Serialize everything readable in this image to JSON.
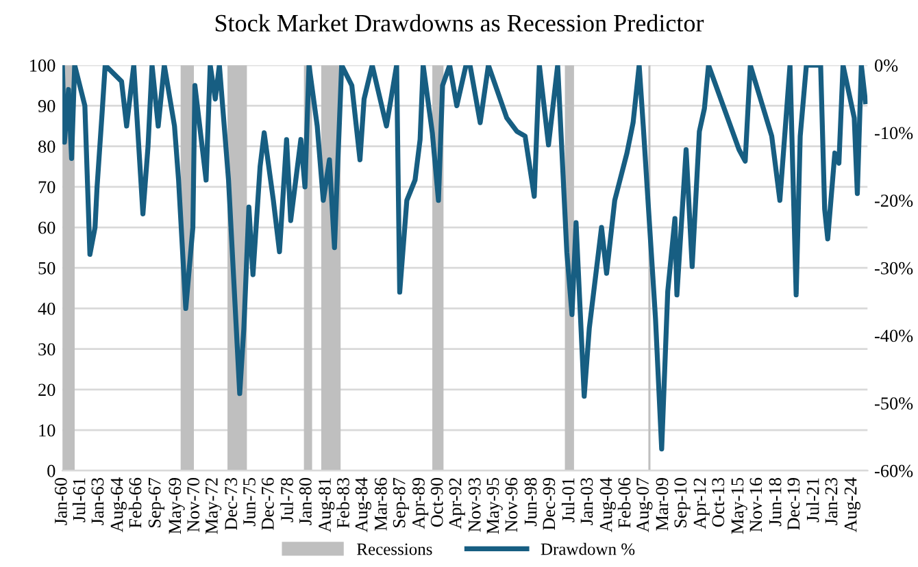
{
  "chart_data": {
    "type": "line",
    "title": "Stock Market Drawdowns as Recession Predictor",
    "x": [
      "1960-01",
      "1960-03",
      "1960-07",
      "1960-10",
      "1961-01",
      "1961-11",
      "1962-04",
      "1962-09",
      "1962-11",
      "1963-04",
      "1963-07",
      "1964-11",
      "1965-04",
      "1965-11",
      "1966-08",
      "1967-01",
      "1967-05",
      "1967-11",
      "1968-05",
      "1969-03",
      "1969-07",
      "1970-02",
      "1970-09",
      "1970-11",
      "1971-10",
      "1972-02",
      "1972-07",
      "1972-11",
      "1973-08",
      "1974-07",
      "1974-11",
      "1975-04",
      "1975-08",
      "1976-03",
      "1976-07",
      "1977-04",
      "1977-10",
      "1978-05",
      "1978-09",
      "1979-07",
      "1979-11",
      "1980-03",
      "1980-11",
      "1981-05",
      "1981-11",
      "1982-04",
      "1982-11",
      "1983-09",
      "1984-05",
      "1984-09",
      "1985-05",
      "1986-07",
      "1987-05",
      "1987-08",
      "1988-03",
      "1988-11",
      "1989-04",
      "1989-07",
      "1990-04",
      "1990-10",
      "1991-02",
      "1991-09",
      "1992-04",
      "1993-01",
      "1993-05",
      "1994-03",
      "1994-11",
      "1996-05",
      "1997-03",
      "1997-11",
      "1998-08",
      "1999-01",
      "1999-10",
      "2000-07",
      "2001-04",
      "2001-09",
      "2002-01",
      "2002-09",
      "2003-02",
      "2004-02",
      "2004-07",
      "2005-03",
      "2006-03",
      "2006-09",
      "2007-03",
      "2007-07",
      "2007-11",
      "2008-07",
      "2009-01",
      "2009-07",
      "2010-02",
      "2010-04",
      "2011-01",
      "2011-07",
      "2012-02",
      "2012-07",
      "2012-11",
      "2015-05",
      "2015-11",
      "2016-04",
      "2018-01",
      "2018-09",
      "2019-07",
      "2020-01",
      "2020-05",
      "2020-11",
      "2022-01",
      "2022-05",
      "2022-08",
      "2023-03",
      "2023-07",
      "2023-11",
      "2024-10",
      "2025-01",
      "2025-05",
      "2025-09"
    ],
    "series": [
      {
        "name": "Drawdown %",
        "color": "#175e82",
        "axis": "y2",
        "values": [
          0,
          -11.4,
          -3.6,
          -13.8,
          0,
          -6,
          -28,
          -24,
          -18,
          -7,
          0,
          -2.4,
          -9,
          0,
          -22,
          -12,
          0,
          -9,
          0,
          -9,
          -17,
          -36,
          -24,
          -3,
          -17,
          0,
          -5,
          0,
          -17,
          -48.6,
          -39,
          -21,
          -31,
          -15,
          -10,
          -20,
          -27.6,
          -11,
          -23,
          -11,
          -18,
          0,
          -9,
          -20,
          -14,
          -27,
          0,
          -3,
          -14,
          -5,
          0,
          -9,
          0,
          -33.6,
          -20,
          -17,
          -11,
          0,
          -10,
          -20,
          -3,
          0,
          -6,
          0,
          0,
          -8.5,
          0,
          -7.8,
          -9.8,
          -10.5,
          -19.4,
          0,
          -11.8,
          0,
          -27.7,
          -36.9,
          -23.3,
          -49,
          -38.9,
          -24,
          -30.8,
          -20,
          -13,
          -8.5,
          0,
          -9,
          -18.6,
          -37.5,
          -56.8,
          -33.5,
          -22.7,
          -34,
          -12.5,
          -29.8,
          -9.8,
          -6.4,
          0,
          -12.5,
          -14.2,
          0,
          -10.5,
          -20,
          0,
          -34,
          -10.5,
          0,
          0,
          -21.3,
          -25.7,
          -13,
          -14.5,
          0,
          -7.8,
          -19,
          0,
          -5.4
        ]
      }
    ],
    "bands": [
      {
        "axis": "x",
        "from": "1960-01",
        "to": "1961-01",
        "label": "Recessions",
        "color": "#bfbfbf"
      },
      {
        "axis": "x",
        "from": "1969-09",
        "to": "1970-10",
        "color": "#bfbfbf"
      },
      {
        "axis": "x",
        "from": "1973-07",
        "to": "1975-02",
        "color": "#bfbfbf"
      },
      {
        "axis": "x",
        "from": "1979-10",
        "to": "1980-06",
        "color": "#bfbfbf"
      },
      {
        "axis": "x",
        "from": "1981-03",
        "to": "1982-10",
        "color": "#bfbfbf"
      },
      {
        "axis": "x",
        "from": "1990-04",
        "to": "1991-03",
        "color": "#bfbfbf"
      },
      {
        "axis": "x",
        "from": "2001-02",
        "to": "2001-11",
        "color": "#bfbfbf"
      },
      {
        "axis": "x",
        "from": "2007-12",
        "to": "2008-02",
        "color": "#bfbfbf"
      }
    ],
    "xlim": [
      "1960-01",
      "2025-11"
    ],
    "xticks": [
      {
        "value": "1960-01",
        "label": "Jan-60"
      },
      {
        "value": "1961-07",
        "label": "Jul-61"
      },
      {
        "value": "1963-01",
        "label": "Jan-63"
      },
      {
        "value": "1964-08",
        "label": "Aug-64"
      },
      {
        "value": "1966-02",
        "label": "Feb-66"
      },
      {
        "value": "1967-09",
        "label": "Sep-67"
      },
      {
        "value": "1969-05",
        "label": "May-69"
      },
      {
        "value": "1970-11",
        "label": "Nov-70"
      },
      {
        "value": "1972-05",
        "label": "May-72"
      },
      {
        "value": "1973-12",
        "label": "Dec-73"
      },
      {
        "value": "1975-06",
        "label": "Jun-75"
      },
      {
        "value": "1976-12",
        "label": "Dec-76"
      },
      {
        "value": "1978-07",
        "label": "Jul-78"
      },
      {
        "value": "1980-01",
        "label": "Jan-80"
      },
      {
        "value": "1981-08",
        "label": "Aug-81"
      },
      {
        "value": "1983-02",
        "label": "Feb-83"
      },
      {
        "value": "1984-08",
        "label": "Aug-84"
      },
      {
        "value": "1986-03",
        "label": "Mar-86"
      },
      {
        "value": "1987-09",
        "label": "Sep-87"
      },
      {
        "value": "1989-04",
        "label": "Apr-89"
      },
      {
        "value": "1990-10",
        "label": "Oct-90"
      },
      {
        "value": "1992-04",
        "label": "Apr-92"
      },
      {
        "value": "1993-11",
        "label": "Nov-93"
      },
      {
        "value": "1995-05",
        "label": "May-95"
      },
      {
        "value": "1996-11",
        "label": "Nov-96"
      },
      {
        "value": "1998-06",
        "label": "Jun-98"
      },
      {
        "value": "1999-12",
        "label": "Dec-99"
      },
      {
        "value": "2001-07",
        "label": "Jul-01"
      },
      {
        "value": "2003-01",
        "label": "Jan-03"
      },
      {
        "value": "2004-08",
        "label": "Aug-04"
      },
      {
        "value": "2006-02",
        "label": "Feb-06"
      },
      {
        "value": "2007-08",
        "label": "Aug-07"
      },
      {
        "value": "2009-03",
        "label": "Mar-09"
      },
      {
        "value": "2010-09",
        "label": "Sep-10"
      },
      {
        "value": "2012-04",
        "label": "Apr-12"
      },
      {
        "value": "2013-10",
        "label": "Oct-13"
      },
      {
        "value": "2015-05",
        "label": "May-15"
      },
      {
        "value": "2016-11",
        "label": "Nov-16"
      },
      {
        "value": "2018-06",
        "label": "Jun-18"
      },
      {
        "value": "2019-12",
        "label": "Dec-19"
      },
      {
        "value": "2021-07",
        "label": "Jul-21"
      },
      {
        "value": "2023-01",
        "label": "Jan-23"
      },
      {
        "value": "2024-08",
        "label": "Aug-24"
      }
    ],
    "ylim": [
      0,
      100
    ],
    "yticks": [
      0,
      10,
      20,
      30,
      40,
      50,
      60,
      70,
      80,
      90,
      100
    ],
    "y2lim": [
      -60,
      0
    ],
    "y2ticks": [
      {
        "value": -60,
        "label": "-60%"
      },
      {
        "value": -50,
        "label": "-50%"
      },
      {
        "value": -40,
        "label": "-40%"
      },
      {
        "value": -30,
        "label": "-30%"
      },
      {
        "value": -20,
        "label": "-20%"
      },
      {
        "value": -10,
        "label": "-10%"
      },
      {
        "value": 0,
        "label": "0%"
      }
    ],
    "grid": "y",
    "legend": "bottom",
    "line_style": "solid"
  }
}
